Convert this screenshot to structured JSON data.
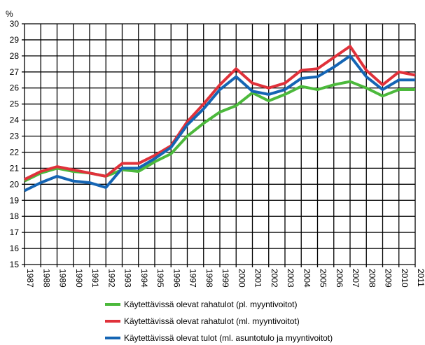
{
  "chart_data": {
    "type": "line",
    "ylabel": "%",
    "ylim": [
      15,
      30
    ],
    "yticks": [
      15,
      16,
      17,
      18,
      19,
      20,
      21,
      22,
      23,
      24,
      25,
      26,
      27,
      28,
      29,
      30
    ],
    "grid": true,
    "legend_position": "bottom",
    "x": [
      "1987",
      "1988",
      "1989",
      "1990",
      "1991",
      "1992",
      "1993",
      "1994",
      "1995",
      "1996",
      "1997",
      "1998",
      "1999",
      "2000",
      "2001",
      "2002",
      "2003",
      "2004",
      "2005",
      "2006",
      "2007",
      "2008",
      "2009",
      "2010",
      "2011"
    ],
    "series": [
      {
        "name": "Käytettävissä olevat rahatulot (pl. myyntivoitot)",
        "color": "#4cb93c",
        "values": [
          20.2,
          20.7,
          21.0,
          20.8,
          20.7,
          20.5,
          20.9,
          20.8,
          21.4,
          21.9,
          23.0,
          23.8,
          24.5,
          24.9,
          25.7,
          25.2,
          25.6,
          26.1,
          25.9,
          26.2,
          26.4,
          26.0,
          25.5,
          25.9,
          25.9
        ]
      },
      {
        "name": "Käytettävissä olevat rahatulot (ml. myyntivoitot)",
        "color": "#e0313a",
        "values": [
          20.3,
          20.8,
          21.1,
          20.9,
          20.7,
          20.5,
          21.3,
          21.3,
          21.8,
          22.4,
          23.9,
          25.0,
          26.2,
          27.2,
          26.3,
          26.0,
          26.3,
          27.1,
          27.2,
          27.9,
          28.6,
          27.1,
          26.2,
          27.0,
          26.8
        ]
      },
      {
        "name": "Käytettävissä olevat tulot  (ml. asuntotulo ja myyntivoitot)",
        "color": "#1565b4",
        "values": [
          19.6,
          20.1,
          20.5,
          20.2,
          20.1,
          19.8,
          21.0,
          21.0,
          21.6,
          22.3,
          23.7,
          24.7,
          25.9,
          26.7,
          25.8,
          25.6,
          25.9,
          26.6,
          26.7,
          27.3,
          28.0,
          26.7,
          25.9,
          26.5,
          26.5
        ]
      }
    ]
  }
}
